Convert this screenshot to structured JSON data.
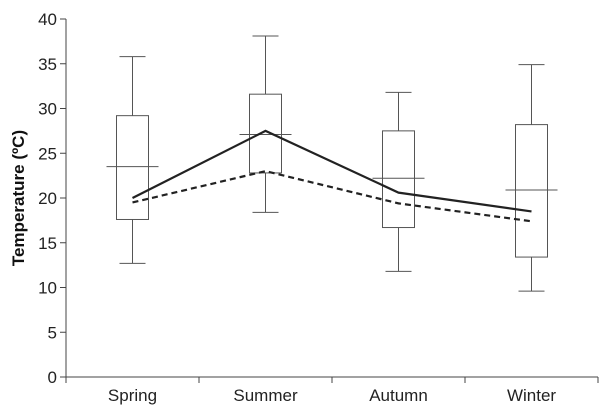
{
  "chart_data": {
    "type": "box",
    "title": "",
    "xlabel": "",
    "ylabel": "Temperature (ºC)",
    "ylim": [
      0,
      40
    ],
    "yticks": [
      0,
      5,
      10,
      15,
      20,
      25,
      30,
      35,
      40
    ],
    "grid": false,
    "categories": [
      "Spring",
      "Summer",
      "Autumn",
      "Winter"
    ],
    "boxes": [
      {
        "category": "Spring",
        "min": 12.7,
        "q1": 17.6,
        "median": 23.5,
        "q3": 29.2,
        "max": 35.8
      },
      {
        "category": "Summer",
        "min": 18.4,
        "q1": 22.8,
        "median": 27.1,
        "q3": 31.6,
        "max": 38.1
      },
      {
        "category": "Autumn",
        "min": 11.8,
        "q1": 16.7,
        "median": 22.2,
        "q3": 27.5,
        "max": 31.8
      },
      {
        "category": "Winter",
        "min": 9.6,
        "q1": 13.4,
        "median": 20.9,
        "q3": 28.2,
        "max": 34.9
      }
    ],
    "series": [
      {
        "style": "solid",
        "values": [
          20.0,
          27.5,
          20.6,
          18.5
        ]
      },
      {
        "style": "dashed",
        "values": [
          19.5,
          23.0,
          19.4,
          17.4
        ]
      }
    ],
    "colors": {
      "line": "#222222",
      "box": "#555555",
      "axis": "#444444"
    }
  }
}
